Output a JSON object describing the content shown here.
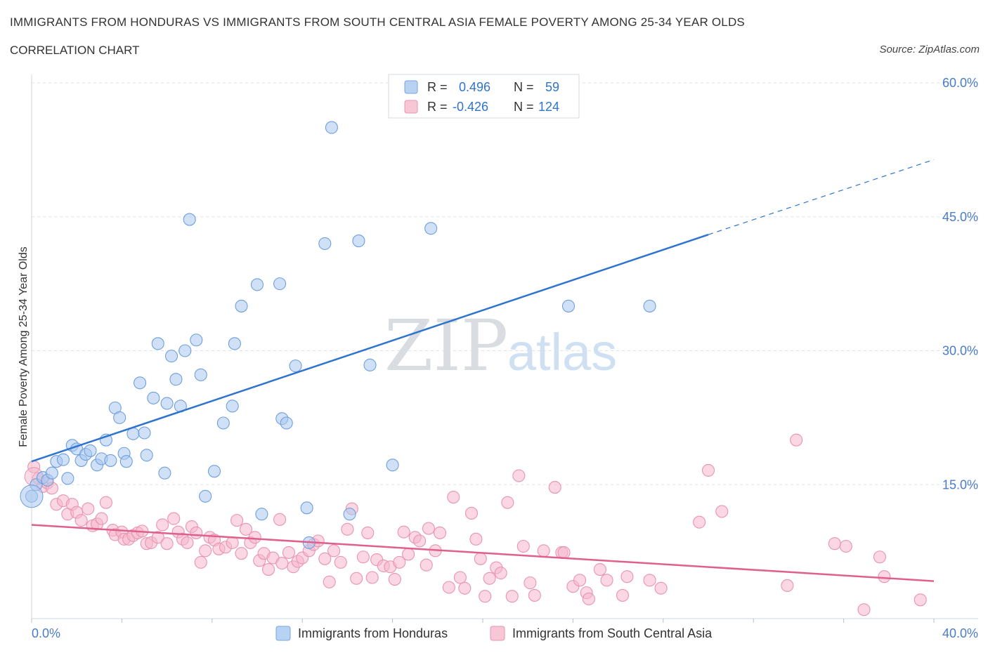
{
  "header": {
    "title": "IMMIGRANTS FROM HONDURAS VS IMMIGRANTS FROM SOUTH CENTRAL ASIA FEMALE POVERTY AMONG 25-34 YEAR OLDS",
    "subtitle": "CORRELATION CHART",
    "source": "Source: ZipAtlas.com"
  },
  "colors": {
    "blue": "#2e74cf",
    "blue_fill": "#a9c8f0",
    "pink": "#e0608c",
    "pink_fill": "#f5b7ca",
    "grid": "#dde2e8",
    "tick_text": "#4a7cc9"
  },
  "watermark": {
    "zip": "ZIP",
    "atlas": "atlas"
  },
  "chart_data": {
    "type": "scatter",
    "title": "IMMIGRANTS FROM HONDURAS VS IMMIGRANTS FROM SOUTH CENTRAL ASIA FEMALE POVERTY AMONG 25-34 YEAR OLDS",
    "xlabel": "",
    "ylabel": "Female Poverty Among 25-34 Year Olds",
    "xlim": [
      0,
      40
    ],
    "ylim": [
      0,
      60
    ],
    "x_tick_labels": [
      "0.0%",
      "40.0%"
    ],
    "y_ticks": [
      15,
      30,
      45,
      60
    ],
    "y_tick_labels": [
      "15.0%",
      "30.0%",
      "45.0%",
      "60.0%"
    ],
    "legend_position": "top-center",
    "legend_rows": [
      {
        "r_label": "R =",
        "r_value": "0.496",
        "n_label": "N =",
        "n_value": "59"
      },
      {
        "r_label": "R =",
        "r_value": "-0.426",
        "n_label": "N =",
        "n_value": "124"
      }
    ],
    "series": [
      {
        "name": "Immigrants from Honduras",
        "trend": {
          "x0": 0,
          "y0": 17.6,
          "x1": 30.0,
          "y1": 43.0,
          "dash_x1": 40.0,
          "dash_y1": 51.4
        },
        "points": [
          [
            0.2,
            15.0
          ],
          [
            0.5,
            15.8
          ],
          [
            0.7,
            15.5
          ],
          [
            0.9,
            16.3
          ],
          [
            1.1,
            17.6
          ],
          [
            1.4,
            17.8
          ],
          [
            1.6,
            15.7
          ],
          [
            1.8,
            19.4
          ],
          [
            2.0,
            19.0
          ],
          [
            2.2,
            17.7
          ],
          [
            2.4,
            18.4
          ],
          [
            2.6,
            18.8
          ],
          [
            2.9,
            17.2
          ],
          [
            3.1,
            17.9
          ],
          [
            3.3,
            20.0
          ],
          [
            3.5,
            17.7
          ],
          [
            3.7,
            23.6
          ],
          [
            3.9,
            22.5
          ],
          [
            4.1,
            18.5
          ],
          [
            4.2,
            17.6
          ],
          [
            4.5,
            20.7
          ],
          [
            4.8,
            26.4
          ],
          [
            5.0,
            20.8
          ],
          [
            5.1,
            18.3
          ],
          [
            5.4,
            24.7
          ],
          [
            5.6,
            30.8
          ],
          [
            5.9,
            16.3
          ],
          [
            6.0,
            24.1
          ],
          [
            6.2,
            29.4
          ],
          [
            6.4,
            26.8
          ],
          [
            6.6,
            23.8
          ],
          [
            6.8,
            30.0
          ],
          [
            7.0,
            44.7
          ],
          [
            7.3,
            31.2
          ],
          [
            7.5,
            27.3
          ],
          [
            7.7,
            13.7
          ],
          [
            8.1,
            16.5
          ],
          [
            8.5,
            21.9
          ],
          [
            8.9,
            23.8
          ],
          [
            9.0,
            30.8
          ],
          [
            9.3,
            35.0
          ],
          [
            10.0,
            37.4
          ],
          [
            10.2,
            11.7
          ],
          [
            11.0,
            37.5
          ],
          [
            11.1,
            22.4
          ],
          [
            11.3,
            21.9
          ],
          [
            11.7,
            28.3
          ],
          [
            12.2,
            12.4
          ],
          [
            12.3,
            8.5
          ],
          [
            13.0,
            42.0
          ],
          [
            13.3,
            55.0
          ],
          [
            14.1,
            11.7
          ],
          [
            14.5,
            42.3
          ],
          [
            15.0,
            28.4
          ],
          [
            16.0,
            17.2
          ],
          [
            17.7,
            43.7
          ],
          [
            23.8,
            35.0
          ],
          [
            27.4,
            35.0
          ],
          [
            0.0,
            13.7
          ]
        ]
      },
      {
        "name": "Immigrants from South Central Asia",
        "trend": {
          "x0": 0,
          "y0": 10.5,
          "x1": 40.0,
          "y1": 4.2
        },
        "points": [
          [
            0.1,
            17.0
          ],
          [
            0.3,
            15.7
          ],
          [
            0.5,
            14.8
          ],
          [
            0.7,
            15.2
          ],
          [
            0.9,
            14.6
          ],
          [
            1.1,
            12.8
          ],
          [
            1.4,
            13.2
          ],
          [
            1.6,
            11.7
          ],
          [
            1.8,
            12.8
          ],
          [
            2.0,
            11.9
          ],
          [
            2.2,
            11.0
          ],
          [
            2.5,
            12.3
          ],
          [
            2.7,
            10.4
          ],
          [
            2.9,
            10.6
          ],
          [
            3.1,
            11.2
          ],
          [
            3.3,
            13.0
          ],
          [
            3.6,
            9.9
          ],
          [
            3.7,
            9.4
          ],
          [
            4.0,
            9.7
          ],
          [
            4.1,
            8.9
          ],
          [
            4.3,
            8.9
          ],
          [
            4.5,
            9.3
          ],
          [
            4.7,
            9.6
          ],
          [
            4.9,
            9.8
          ],
          [
            5.1,
            8.4
          ],
          [
            5.3,
            8.5
          ],
          [
            5.6,
            9.1
          ],
          [
            5.8,
            10.5
          ],
          [
            6.0,
            8.4
          ],
          [
            6.3,
            11.2
          ],
          [
            6.5,
            9.7
          ],
          [
            6.7,
            8.9
          ],
          [
            6.9,
            8.5
          ],
          [
            7.1,
            10.3
          ],
          [
            7.3,
            9.6
          ],
          [
            7.5,
            6.3
          ],
          [
            7.7,
            7.6
          ],
          [
            7.9,
            9.1
          ],
          [
            8.1,
            8.8
          ],
          [
            8.3,
            7.8
          ],
          [
            8.6,
            8.0
          ],
          [
            8.9,
            8.5
          ],
          [
            9.1,
            11.0
          ],
          [
            9.3,
            7.3
          ],
          [
            9.5,
            10.0
          ],
          [
            9.7,
            8.5
          ],
          [
            9.9,
            9.1
          ],
          [
            10.1,
            6.5
          ],
          [
            10.3,
            7.3
          ],
          [
            10.5,
            5.5
          ],
          [
            10.7,
            6.8
          ],
          [
            11.0,
            11.1
          ],
          [
            11.1,
            6.2
          ],
          [
            11.4,
            7.4
          ],
          [
            11.6,
            5.8
          ],
          [
            11.8,
            6.4
          ],
          [
            12.0,
            6.8
          ],
          [
            12.3,
            7.6
          ],
          [
            12.5,
            8.3
          ],
          [
            12.7,
            8.7
          ],
          [
            13.0,
            6.7
          ],
          [
            13.2,
            4.1
          ],
          [
            13.4,
            7.6
          ],
          [
            13.7,
            6.3
          ],
          [
            14.0,
            10.0
          ],
          [
            14.2,
            12.3
          ],
          [
            14.4,
            4.5
          ],
          [
            14.7,
            6.9
          ],
          [
            14.9,
            9.6
          ],
          [
            15.1,
            4.6
          ],
          [
            15.3,
            6.6
          ],
          [
            15.6,
            5.9
          ],
          [
            15.9,
            5.8
          ],
          [
            16.1,
            4.4
          ],
          [
            16.3,
            6.3
          ],
          [
            16.5,
            9.7
          ],
          [
            16.7,
            7.2
          ],
          [
            17.0,
            9.1
          ],
          [
            17.2,
            8.7
          ],
          [
            17.5,
            6.0
          ],
          [
            17.6,
            10.1
          ],
          [
            17.9,
            7.6
          ],
          [
            18.1,
            9.6
          ],
          [
            18.5,
            3.5
          ],
          [
            18.7,
            13.6
          ],
          [
            19.0,
            4.6
          ],
          [
            19.2,
            3.4
          ],
          [
            19.5,
            11.8
          ],
          [
            19.7,
            8.9
          ],
          [
            19.9,
            6.7
          ],
          [
            20.1,
            2.5
          ],
          [
            20.3,
            4.5
          ],
          [
            20.6,
            5.7
          ],
          [
            20.8,
            5.1
          ],
          [
            21.1,
            13.0
          ],
          [
            21.3,
            2.5
          ],
          [
            21.6,
            16.0
          ],
          [
            21.8,
            8.1
          ],
          [
            22.1,
            4.0
          ],
          [
            22.3,
            2.6
          ],
          [
            22.7,
            7.6
          ],
          [
            23.2,
            14.7
          ],
          [
            23.5,
            7.4
          ],
          [
            23.6,
            7.4
          ],
          [
            24.0,
            3.6
          ],
          [
            24.3,
            4.3
          ],
          [
            24.6,
            2.9
          ],
          [
            24.7,
            2.2
          ],
          [
            25.2,
            5.5
          ],
          [
            25.5,
            4.3
          ],
          [
            26.2,
            2.6
          ],
          [
            26.4,
            4.7
          ],
          [
            27.4,
            4.3
          ],
          [
            27.9,
            3.4
          ],
          [
            29.6,
            10.8
          ],
          [
            30.0,
            16.6
          ],
          [
            30.6,
            12.0
          ],
          [
            33.9,
            20.0
          ],
          [
            33.5,
            3.7
          ],
          [
            35.6,
            8.4
          ],
          [
            36.1,
            8.1
          ],
          [
            36.9,
            1.0
          ],
          [
            37.6,
            6.9
          ],
          [
            37.8,
            4.7
          ],
          [
            39.4,
            2.1
          ]
        ]
      }
    ]
  },
  "legend_bottom": {
    "items": [
      "Immigrants from Honduras",
      "Immigrants from South Central Asia"
    ]
  }
}
